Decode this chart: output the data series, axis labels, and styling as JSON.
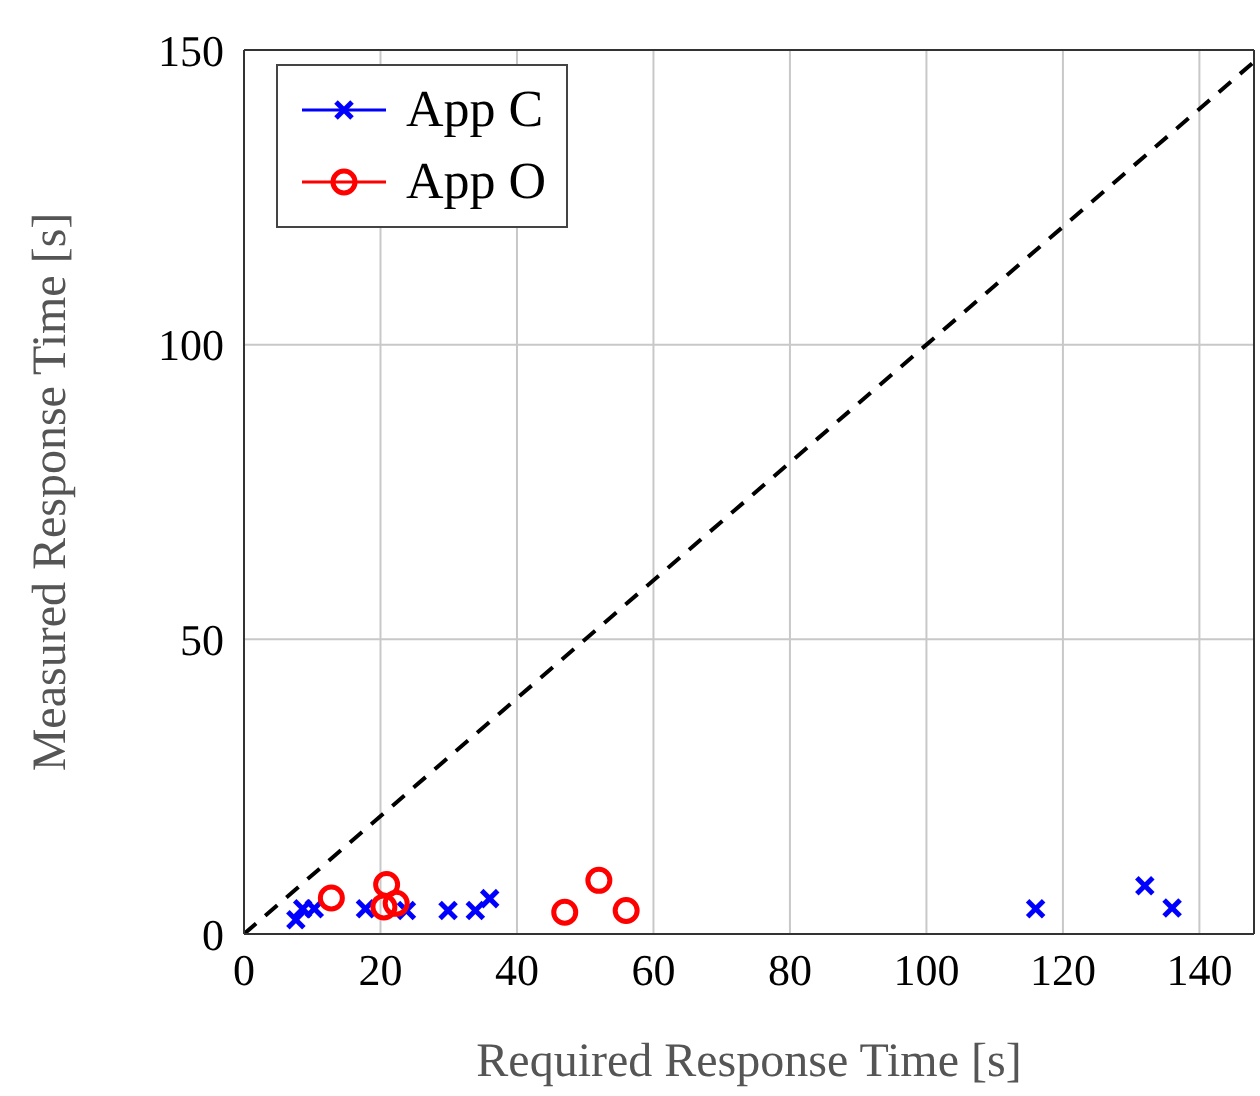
{
  "chart_data": {
    "type": "scatter",
    "xlabel": "Required Response Time [s]",
    "ylabel": "Measured Response Time [s]",
    "xlim": [
      0,
      148
    ],
    "ylim": [
      0,
      150
    ],
    "xticks": [
      0,
      20,
      40,
      60,
      80,
      100,
      120,
      140
    ],
    "yticks": [
      0,
      50,
      100,
      150
    ],
    "grid": true,
    "legend": "top left",
    "series": [
      {
        "name": "App C",
        "color": "#0000ff",
        "marker": "cross",
        "x": [
          7.6,
          8.6,
          10.3,
          17.8,
          23.8,
          29.9,
          33.9,
          36,
          116,
          132,
          136
        ],
        "values": [
          2.4,
          4.3,
          4.3,
          4.3,
          4,
          4,
          4,
          6,
          4.3,
          8.2,
          4.4
        ]
      },
      {
        "name": "App O",
        "color": "#ff0000",
        "marker": "circle",
        "x": [
          12.8,
          20.9,
          20.5,
          22.3,
          47,
          52,
          56
        ],
        "values": [
          6.1,
          8.4,
          4.6,
          5.2,
          3.7,
          9.1,
          4
        ]
      },
      {
        "type": "line",
        "color": "#000000",
        "line_style": "dashed",
        "marker": "none",
        "x": [
          0,
          148
        ],
        "values": [
          0,
          148
        ]
      }
    ]
  }
}
